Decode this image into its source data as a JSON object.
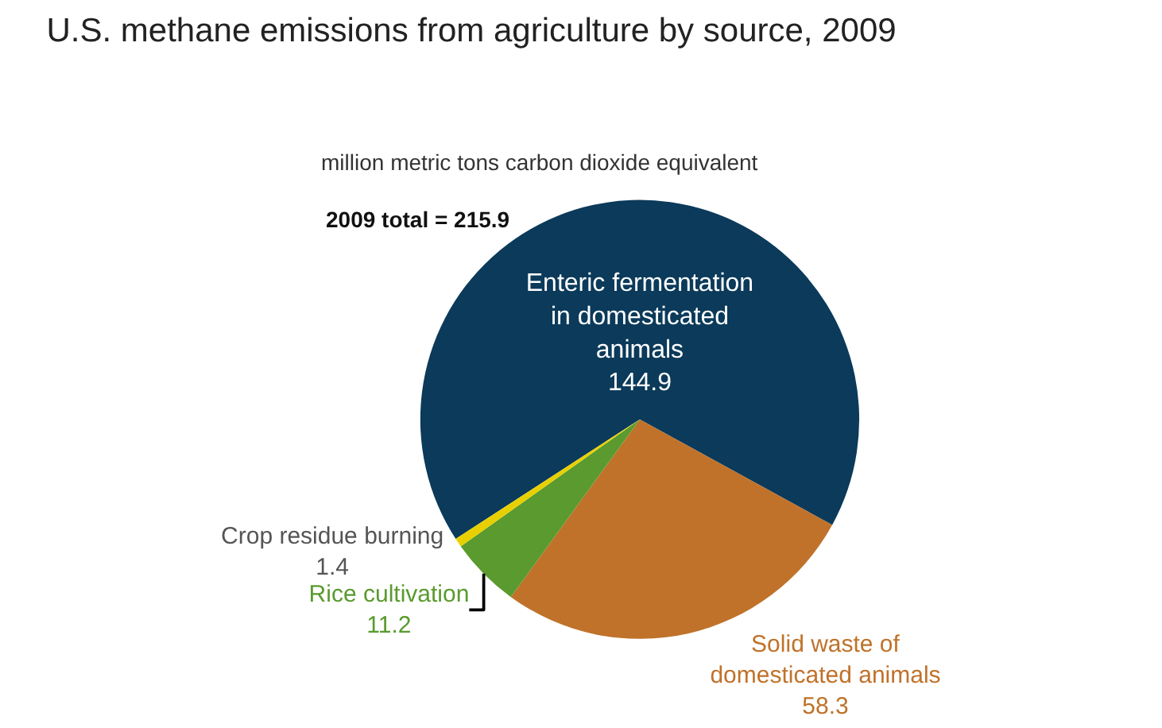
{
  "chart_data": {
    "type": "pie",
    "title": "U.S. methane emissions from agriculture by source, 2009",
    "subtitle": "million metric tons carbon dioxide equivalent",
    "annotations": [
      "2009 total = 215.9"
    ],
    "categories": [
      "Enteric fermentation in domesticated animals",
      "Solid waste of domesticated animals",
      "Rice cultivation",
      "Crop residue burning"
    ],
    "values": [
      144.9,
      58.3,
      11.2,
      1.4
    ],
    "colors": [
      "#0b3a5a",
      "#c0722a",
      "#5a9a2e",
      "#e8d000"
    ],
    "data_labels": true
  }
}
